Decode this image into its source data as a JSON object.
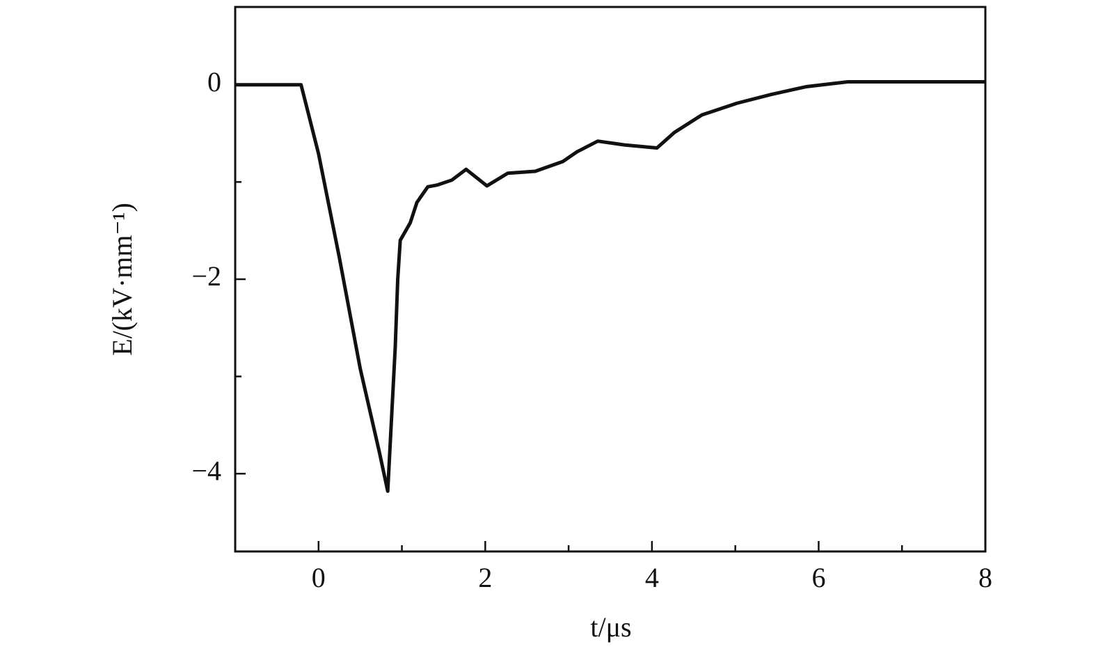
{
  "chart_data": {
    "type": "line",
    "x_label": "t/μs",
    "y_label": "E/(kV·mm⁻¹)",
    "x": [
      -1,
      -0.5,
      -0.21,
      0,
      0.25,
      0.5,
      0.73,
      0.83,
      0.92,
      0.95,
      0.98,
      1.1,
      1.18,
      1.31,
      1.43,
      1.6,
      1.77,
      2.02,
      2.27,
      2.6,
      2.93,
      3.1,
      3.35,
      3.68,
      4.06,
      4.27,
      4.6,
      5.02,
      5.43,
      5.85,
      6.35,
      7.0,
      8.0
    ],
    "series": [
      {
        "color": "#111111",
        "values": [
          0,
          0,
          0,
          -0.71,
          -1.78,
          -2.92,
          -3.78,
          -4.18,
          -2.7,
          -2.0,
          -1.6,
          -1.42,
          -1.21,
          -1.05,
          -1.03,
          -0.98,
          -0.87,
          -1.04,
          -0.91,
          -0.89,
          -0.79,
          -0.69,
          -0.58,
          -0.62,
          -0.65,
          -0.49,
          -0.31,
          -0.19,
          -0.1,
          -0.02,
          0.03,
          0.03,
          0.03
        ]
      }
    ],
    "xlim": [
      -1,
      8
    ],
    "ylim": [
      -4.8,
      0.8
    ],
    "xticks": [
      0,
      2,
      4,
      6,
      8
    ],
    "xminorticks": [
      1,
      3,
      5,
      7
    ],
    "yticks": [
      0,
      {
        "value": -2,
        "label": "−2"
      },
      {
        "value": -4,
        "label": "−4"
      }
    ],
    "yminorticks": [
      -1,
      -3
    ],
    "grid": false
  }
}
